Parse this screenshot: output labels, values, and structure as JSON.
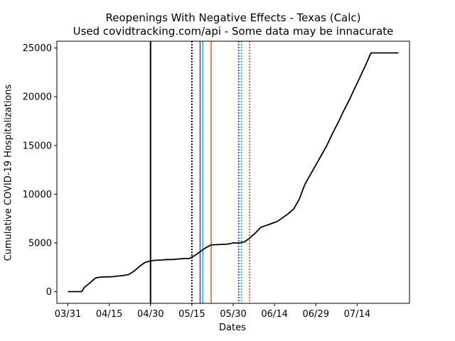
{
  "chart_data": {
    "type": "line",
    "title": "Reopenings With Negative Effects - Texas (Calc)",
    "subtitle": "Used covidtracking.com/api - Some data may be innacurate",
    "xlabel": "Dates",
    "ylabel": "Cumulative COVID-19 Hospitalizations",
    "xlim": [
      "2020-03-27",
      "2020-08-02"
    ],
    "ylim": [
      -1200,
      25700
    ],
    "x_ticks": [
      "03/31",
      "04/15",
      "04/30",
      "05/15",
      "05/30",
      "06/14",
      "06/29",
      "07/14"
    ],
    "x_tick_dates": [
      "2020-03-31",
      "2020-04-15",
      "2020-04-30",
      "2020-05-15",
      "2020-05-30",
      "2020-06-14",
      "2020-06-29",
      "2020-07-14"
    ],
    "y_ticks": [
      0,
      5000,
      10000,
      15000,
      20000,
      25000
    ],
    "grid": false,
    "series": [
      {
        "color": "#000000",
        "x": [
          "2020-03-31",
          "2020-04-01",
          "2020-04-02",
          "2020-04-03",
          "2020-04-04",
          "2020-04-05",
          "2020-04-06",
          "2020-04-08",
          "2020-04-10",
          "2020-04-12",
          "2020-04-14",
          "2020-04-16",
          "2020-04-18",
          "2020-04-20",
          "2020-04-22",
          "2020-04-24",
          "2020-04-26",
          "2020-04-28",
          "2020-04-30",
          "2020-05-01",
          "2020-05-02",
          "2020-05-04",
          "2020-05-06",
          "2020-05-08",
          "2020-05-10",
          "2020-05-12",
          "2020-05-14",
          "2020-05-16",
          "2020-05-18",
          "2020-05-20",
          "2020-05-22",
          "2020-05-24",
          "2020-05-26",
          "2020-05-28",
          "2020-05-30",
          "2020-06-01",
          "2020-06-03",
          "2020-06-05",
          "2020-06-07",
          "2020-06-09",
          "2020-06-11",
          "2020-06-13",
          "2020-06-15",
          "2020-06-17",
          "2020-06-19",
          "2020-06-21",
          "2020-06-23",
          "2020-06-25",
          "2020-06-27",
          "2020-06-29",
          "2020-07-01",
          "2020-07-03",
          "2020-07-05",
          "2020-07-07",
          "2020-07-09",
          "2020-07-11",
          "2020-07-13",
          "2020-07-15",
          "2020-07-17",
          "2020-07-19",
          "2020-07-21",
          "2020-07-23",
          "2020-07-25",
          "2020-07-27",
          "2020-07-29"
        ],
        "values": [
          0,
          0,
          0,
          0,
          0,
          0,
          450,
          900,
          1400,
          1500,
          1520,
          1530,
          1600,
          1650,
          1750,
          2100,
          2600,
          3000,
          3150,
          3200,
          3220,
          3250,
          3300,
          3300,
          3350,
          3400,
          3400,
          3700,
          4100,
          4500,
          4800,
          4820,
          4850,
          4880,
          5000,
          5000,
          5100,
          5500,
          6000,
          6600,
          6800,
          7000,
          7200,
          7600,
          8000,
          8500,
          9500,
          11000,
          12000,
          13000,
          14000,
          15000,
          16200,
          17300,
          18500,
          19600,
          20800,
          22000,
          23200,
          24500,
          24500,
          24500,
          24500,
          24500,
          24500
        ]
      }
    ],
    "vertical_lines": [
      {
        "x": "2020-04-30",
        "color": "#000000",
        "style": "solid"
      },
      {
        "x": "2020-05-15",
        "color": "#000000",
        "style": "dotted"
      },
      {
        "x": "2020-05-18",
        "color": "#7b2fbe",
        "style": "solid"
      },
      {
        "x": "2020-05-19",
        "color": "#00bcd4",
        "style": "solid"
      },
      {
        "x": "2020-05-22",
        "color": "#ff5722",
        "style": "solid"
      },
      {
        "x": "2020-06-01",
        "color": "#7b2fbe",
        "style": "dotted"
      },
      {
        "x": "2020-06-02",
        "color": "#00bcd4",
        "style": "dotted"
      },
      {
        "x": "2020-06-05",
        "color": "#ff5722",
        "style": "dotted"
      }
    ]
  }
}
